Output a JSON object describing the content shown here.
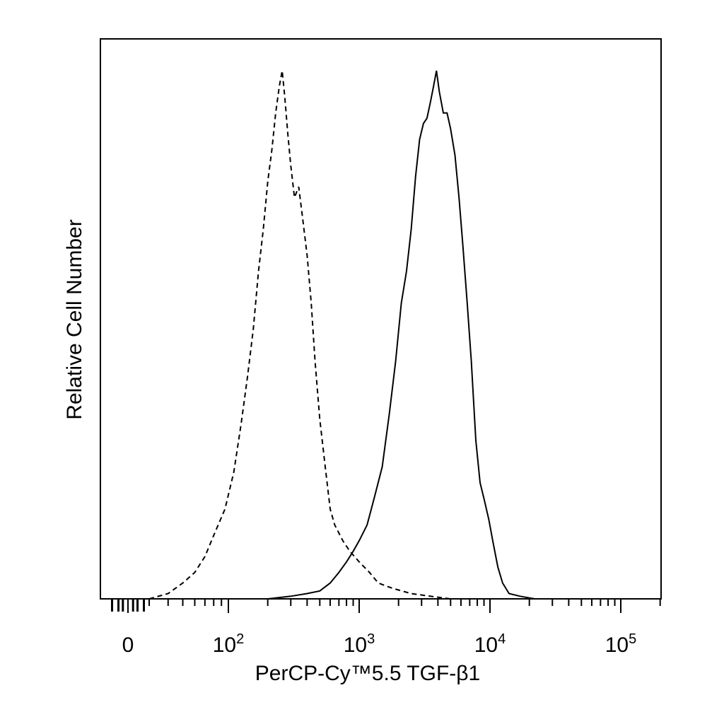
{
  "chart_data": {
    "type": "area",
    "title": "",
    "xlabel": "PerCP-Cy™5.5   TGF-β1",
    "ylabel": "Relative Cell Number",
    "x_scale": "biexponential",
    "xlim": [
      -30,
      250000
    ],
    "grid": false,
    "legend": "none",
    "x_ticks": [
      {
        "label": "0",
        "base": "",
        "exp": "",
        "value": 0
      },
      {
        "label": "10",
        "base": "10",
        "exp": "2",
        "value": 100
      },
      {
        "label": "10",
        "base": "10",
        "exp": "3",
        "value": 1000
      },
      {
        "label": "10",
        "base": "10",
        "exp": "4",
        "value": 10000
      },
      {
        "label": "10",
        "base": "10",
        "exp": "5",
        "value": 100000
      }
    ],
    "series": [
      {
        "style": "dashed",
        "color": "#000000",
        "points": [
          [
            30,
            0.0
          ],
          [
            40,
            0.01
          ],
          [
            50,
            0.03
          ],
          [
            60,
            0.05
          ],
          [
            70,
            0.08
          ],
          [
            80,
            0.12
          ],
          [
            95,
            0.17
          ],
          [
            110,
            0.24
          ],
          [
            125,
            0.33
          ],
          [
            140,
            0.42
          ],
          [
            155,
            0.51
          ],
          [
            170,
            0.62
          ],
          [
            185,
            0.7
          ],
          [
            200,
            0.79
          ],
          [
            215,
            0.85
          ],
          [
            230,
            0.92
          ],
          [
            245,
            0.97
          ],
          [
            258,
            1.0
          ],
          [
            270,
            0.95
          ],
          [
            285,
            0.88
          ],
          [
            300,
            0.82
          ],
          [
            320,
            0.76
          ],
          [
            345,
            0.78
          ],
          [
            370,
            0.72
          ],
          [
            400,
            0.65
          ],
          [
            430,
            0.56
          ],
          [
            460,
            0.45
          ],
          [
            500,
            0.34
          ],
          [
            550,
            0.25
          ],
          [
            600,
            0.17
          ],
          [
            650,
            0.14
          ],
          [
            750,
            0.11
          ],
          [
            850,
            0.09
          ],
          [
            1000,
            0.07
          ],
          [
            1200,
            0.05
          ],
          [
            1400,
            0.03
          ],
          [
            1800,
            0.02
          ],
          [
            2500,
            0.01
          ],
          [
            3500,
            0.005
          ],
          [
            5000,
            0.0
          ]
        ]
      },
      {
        "style": "solid",
        "color": "#000000",
        "points": [
          [
            200,
            0.0
          ],
          [
            300,
            0.005
          ],
          [
            400,
            0.01
          ],
          [
            500,
            0.015
          ],
          [
            600,
            0.03
          ],
          [
            700,
            0.05
          ],
          [
            800,
            0.07
          ],
          [
            900,
            0.09
          ],
          [
            1000,
            0.11
          ],
          [
            1150,
            0.14
          ],
          [
            1300,
            0.19
          ],
          [
            1500,
            0.25
          ],
          [
            1700,
            0.35
          ],
          [
            1900,
            0.45
          ],
          [
            2100,
            0.56
          ],
          [
            2300,
            0.62
          ],
          [
            2500,
            0.7
          ],
          [
            2700,
            0.8
          ],
          [
            2900,
            0.87
          ],
          [
            3100,
            0.9
          ],
          [
            3300,
            0.91
          ],
          [
            3500,
            0.94
          ],
          [
            3700,
            0.97
          ],
          [
            3900,
            1.0
          ],
          [
            4100,
            0.96
          ],
          [
            4400,
            0.92
          ],
          [
            4700,
            0.92
          ],
          [
            5000,
            0.89
          ],
          [
            5400,
            0.84
          ],
          [
            5800,
            0.76
          ],
          [
            6200,
            0.67
          ],
          [
            6700,
            0.56
          ],
          [
            7200,
            0.45
          ],
          [
            7800,
            0.3
          ],
          [
            8400,
            0.22
          ],
          [
            9000,
            0.19
          ],
          [
            9800,
            0.15
          ],
          [
            10500,
            0.11
          ],
          [
            11500,
            0.06
          ],
          [
            12500,
            0.03
          ],
          [
            14000,
            0.01
          ],
          [
            17000,
            0.005
          ],
          [
            22000,
            0.0
          ]
        ]
      }
    ]
  }
}
